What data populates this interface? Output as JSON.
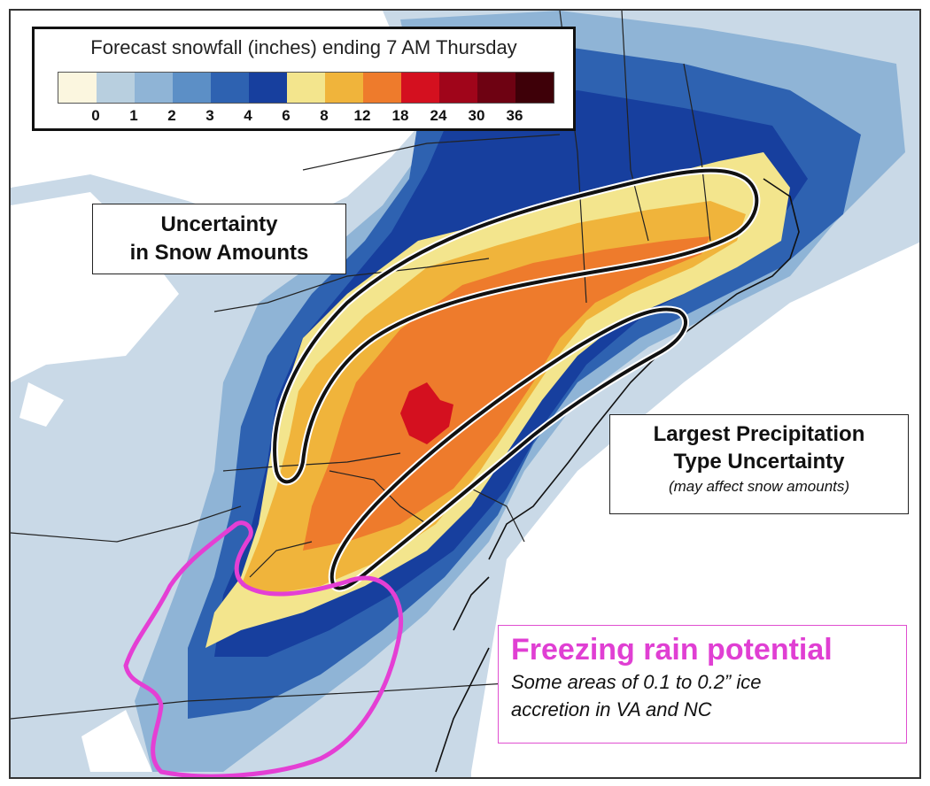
{
  "legend": {
    "title": "Forecast snowfall (inches) ending 7 AM Thursday",
    "ticks": [
      "0",
      "1",
      "2",
      "3",
      "4",
      "6",
      "8",
      "12",
      "18",
      "24",
      "30",
      "36"
    ],
    "colors": [
      "#fbf6df",
      "#b8cfdf",
      "#8fb4d6",
      "#5c8fc6",
      "#2e62b1",
      "#173f9e",
      "#f3e58d",
      "#f0b43b",
      "#ee7b2c",
      "#d4101f",
      "#a0051a",
      "#6e0212",
      "#3e0008"
    ]
  },
  "annotations": {
    "snow_uncertainty": [
      "Uncertainty",
      "in Snow Amounts"
    ],
    "ptype_uncertainty": [
      "Largest Precipitation",
      "Type Uncertainty"
    ],
    "ptype_note": "(may affect snow amounts)",
    "freezing_title": "Freezing rain potential",
    "freezing_body": [
      "Some areas of 0.1 to 0.2” ice",
      "accretion in VA and NC"
    ]
  },
  "outline_colors": {
    "uncertainty": "#111111",
    "freezing_rain": "#e43fd4"
  }
}
